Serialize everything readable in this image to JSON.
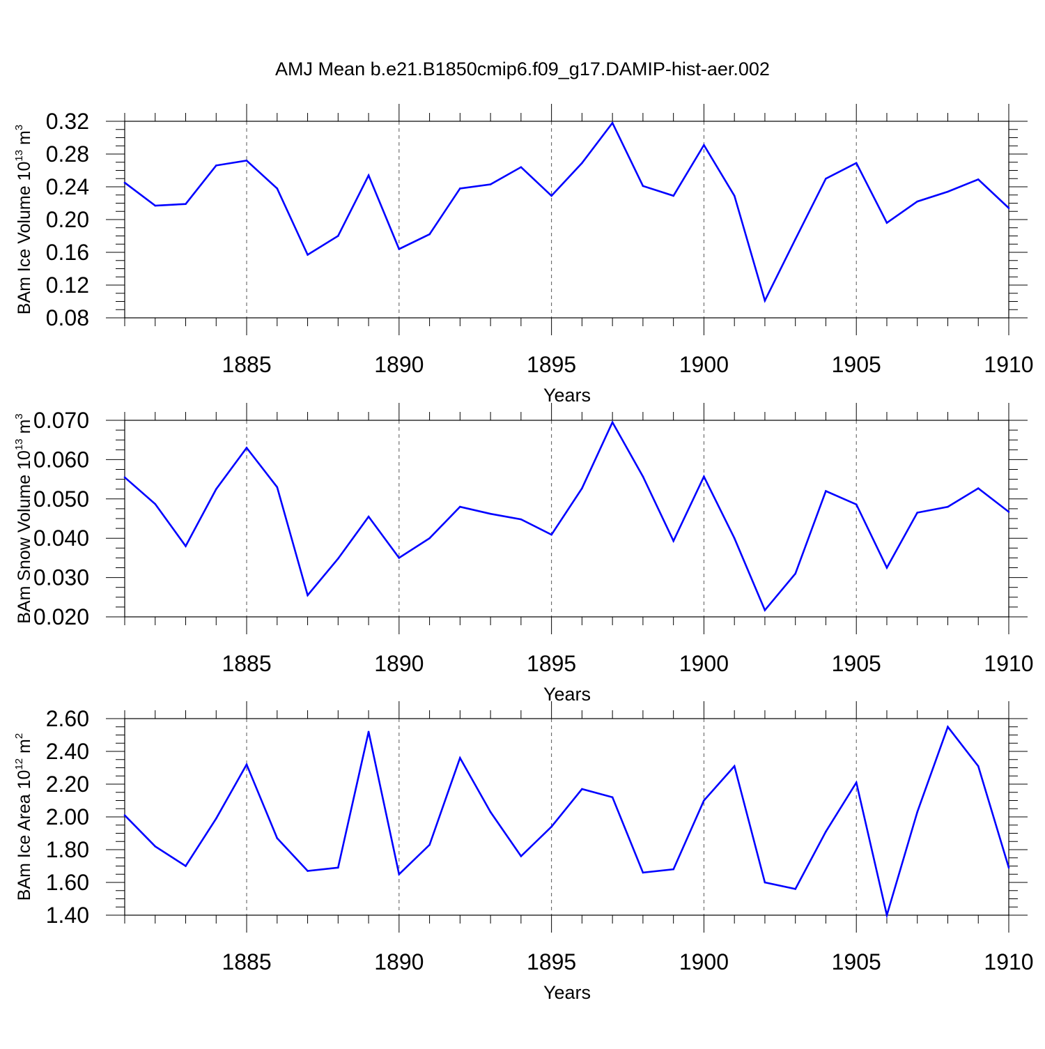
{
  "title": "AMJ Mean b.e21.B1850cmip6.f09_g17.DAMIP-hist-aer.002",
  "colors": {
    "line": "#0000ff",
    "axis": "#000000",
    "grid": "#555555",
    "background": "#ffffff"
  },
  "chart_data": [
    {
      "type": "line",
      "ylabel": {
        "text": "BAm Ice Volume 10",
        "sup": "13",
        "unit": "m",
        "unit_sup": "3"
      },
      "xlabel": "Years",
      "xlim": [
        1881,
        1910
      ],
      "ylim": [
        0.08,
        0.32
      ],
      "xticks": [
        1885,
        1890,
        1895,
        1900,
        1905,
        1910
      ],
      "xtick_labels": [
        "1885",
        "1890",
        "1895",
        "1900",
        "1905",
        "1910"
      ],
      "yticks": [
        0.08,
        0.12,
        0.16,
        0.2,
        0.24,
        0.28,
        0.32
      ],
      "ytick_labels": [
        "0.08",
        "0.12",
        "0.16",
        "0.20",
        "0.24",
        "0.28",
        "0.32"
      ],
      "grid": "vertical dashed at major x ticks",
      "x": [
        1881,
        1882,
        1883,
        1884,
        1885,
        1886,
        1887,
        1888,
        1889,
        1890,
        1891,
        1892,
        1893,
        1894,
        1895,
        1896,
        1897,
        1898,
        1899,
        1900,
        1901,
        1902,
        1903,
        1904,
        1905,
        1906,
        1907,
        1908,
        1909,
        1910
      ],
      "values": [
        0.245,
        0.217,
        0.219,
        0.266,
        0.272,
        0.238,
        0.157,
        0.18,
        0.254,
        0.164,
        0.182,
        0.238,
        0.243,
        0.264,
        0.229,
        0.269,
        0.318,
        0.241,
        0.229,
        0.291,
        0.229,
        0.101,
        0.176,
        0.25,
        0.269,
        0.196,
        0.222,
        0.234,
        0.249,
        0.214
      ]
    },
    {
      "type": "line",
      "ylabel": {
        "text": "BAm Snow Volume 10",
        "sup": "13",
        "unit": "m",
        "unit_sup": "3"
      },
      "xlabel": "Years",
      "xlim": [
        1881,
        1910
      ],
      "ylim": [
        0.02,
        0.07
      ],
      "xticks": [
        1885,
        1890,
        1895,
        1900,
        1905,
        1910
      ],
      "xtick_labels": [
        "1885",
        "1890",
        "1895",
        "1900",
        "1905",
        "1910"
      ],
      "yticks": [
        0.02,
        0.03,
        0.04,
        0.05,
        0.06,
        0.07
      ],
      "ytick_labels": [
        "0.020",
        "0.030",
        "0.040",
        "0.050",
        "0.060",
        "0.070"
      ],
      "grid": "vertical dashed at major x ticks",
      "x": [
        1881,
        1882,
        1883,
        1884,
        1885,
        1886,
        1887,
        1888,
        1889,
        1890,
        1891,
        1892,
        1893,
        1894,
        1895,
        1896,
        1897,
        1898,
        1899,
        1900,
        1901,
        1902,
        1903,
        1904,
        1905,
        1906,
        1907,
        1908,
        1909,
        1910
      ],
      "values": [
        0.0555,
        0.0487,
        0.038,
        0.0525,
        0.063,
        0.053,
        0.0255,
        0.0348,
        0.0455,
        0.035,
        0.04,
        0.048,
        0.0462,
        0.0448,
        0.0409,
        0.0527,
        0.0695,
        0.0557,
        0.0393,
        0.0557,
        0.04,
        0.0217,
        0.031,
        0.052,
        0.0486,
        0.0325,
        0.0465,
        0.048,
        0.0527,
        0.0467
      ]
    },
    {
      "type": "line",
      "ylabel": {
        "text": "BAm Ice Area 10",
        "sup": "12",
        "unit": "m",
        "unit_sup": "2"
      },
      "xlabel": "Years",
      "xlim": [
        1881,
        1910
      ],
      "ylim": [
        1.4,
        2.6
      ],
      "xticks": [
        1885,
        1890,
        1895,
        1900,
        1905,
        1910
      ],
      "xtick_labels": [
        "1885",
        "1890",
        "1895",
        "1900",
        "1905",
        "1910"
      ],
      "yticks": [
        1.4,
        1.6,
        1.8,
        2.0,
        2.2,
        2.4,
        2.6
      ],
      "ytick_labels": [
        "1.40",
        "1.60",
        "1.80",
        "2.00",
        "2.20",
        "2.40",
        "2.60"
      ],
      "grid": "vertical dashed at major x ticks",
      "x": [
        1881,
        1882,
        1883,
        1884,
        1885,
        1886,
        1887,
        1888,
        1889,
        1890,
        1891,
        1892,
        1893,
        1894,
        1895,
        1896,
        1897,
        1898,
        1899,
        1900,
        1901,
        1902,
        1903,
        1904,
        1905,
        1906,
        1907,
        1908,
        1909,
        1910
      ],
      "values": [
        2.01,
        1.82,
        1.7,
        1.99,
        2.32,
        1.87,
        1.67,
        1.69,
        2.52,
        1.65,
        1.83,
        2.36,
        2.03,
        1.76,
        1.94,
        2.17,
        2.12,
        1.66,
        1.68,
        2.1,
        2.31,
        1.6,
        1.56,
        1.91,
        2.21,
        1.4,
        2.03,
        2.55,
        2.31,
        1.69
      ]
    }
  ]
}
